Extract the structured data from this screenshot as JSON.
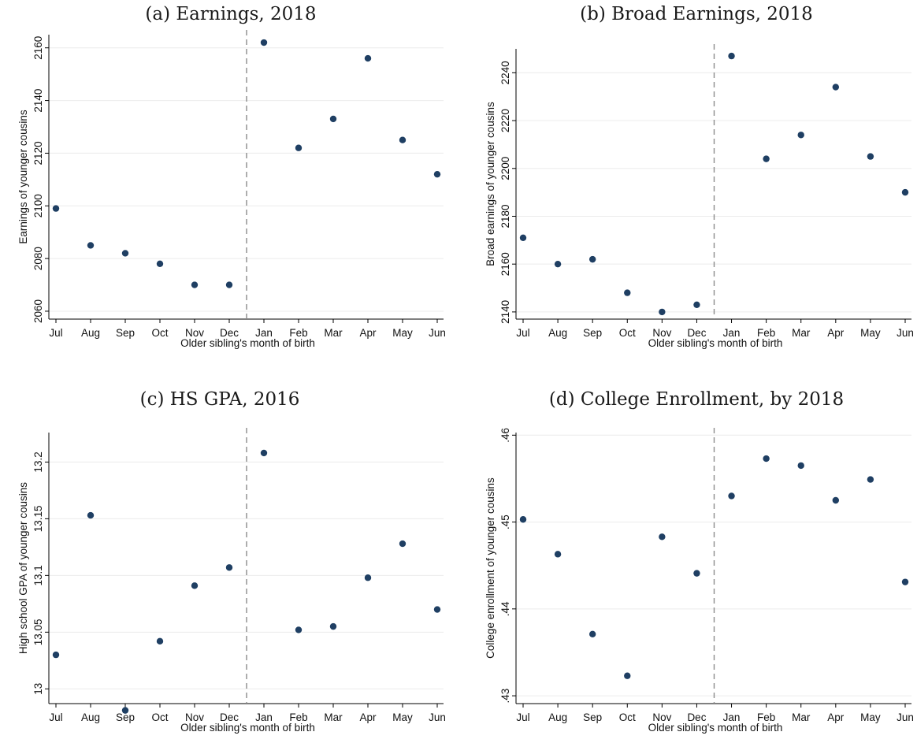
{
  "chart_data": [
    {
      "type": "scatter",
      "title": "(a) Earnings, 2018",
      "xlabel": "Older sibling's month of birth",
      "ylabel": "Earnings of younger cousins",
      "categories": [
        "Jul",
        "Aug",
        "Sep",
        "Oct",
        "Nov",
        "Dec",
        "Jan",
        "Feb",
        "Mar",
        "Apr",
        "May",
        "Jun"
      ],
      "values": [
        2099,
        2085,
        2082,
        2078,
        2070,
        2070,
        2162,
        2122,
        2133,
        2156,
        2125,
        2112
      ],
      "ylim": [
        2057,
        2165
      ],
      "yticks": [
        2060,
        2080,
        2100,
        2120,
        2140,
        2160
      ],
      "ytick_labels": [
        "2060",
        "2080",
        "2100",
        "2120",
        "2140",
        "2160"
      ],
      "cutoff": "between Dec and Jan",
      "grid": true
    },
    {
      "type": "scatter",
      "title": "(b) Broad Earnings, 2018",
      "xlabel": "Older sibling's month of birth",
      "ylabel": "Broad earnings of younger cousins",
      "categories": [
        "Jul",
        "Aug",
        "Sep",
        "Oct",
        "Nov",
        "Dec",
        "Jan",
        "Feb",
        "Mar",
        "Apr",
        "May",
        "Jun"
      ],
      "values": [
        2171,
        2160,
        2162,
        2148,
        2140,
        2143,
        2247,
        2204,
        2214,
        2234,
        2205,
        2190
      ],
      "ylim": [
        2137,
        2250
      ],
      "yticks": [
        2140,
        2160,
        2180,
        2200,
        2220,
        2240
      ],
      "ytick_labels": [
        "2140",
        "2160",
        "2180",
        "2200",
        "2220",
        "2240"
      ],
      "cutoff": "between Dec and Jan",
      "grid": true
    },
    {
      "type": "scatter",
      "title": "(c) HS GPA, 2016",
      "xlabel": "Older sibling's month of birth",
      "ylabel": "High school GPA of younger cousins",
      "categories": [
        "Jul",
        "Aug",
        "Sep",
        "Oct",
        "Nov",
        "Dec",
        "Jan",
        "Feb",
        "Mar",
        "Apr",
        "May",
        "Jun"
      ],
      "values": [
        13.03,
        13.153,
        12.981,
        13.042,
        13.091,
        13.107,
        13.208,
        13.052,
        13.055,
        13.098,
        13.128,
        13.07
      ],
      "ylim": [
        12.987,
        13.226
      ],
      "yticks": [
        13,
        13.05,
        13.1,
        13.15,
        13.2
      ],
      "ytick_labels": [
        "13",
        "13.05",
        "13.1",
        "13.15",
        "13.2"
      ],
      "cutoff": "between Dec and Jan",
      "grid": true
    },
    {
      "type": "scatter",
      "title": "(d) College Enrollment, by 2018",
      "xlabel": "Older sibling's month of birth",
      "ylabel": "College enrollment of younger cousins",
      "categories": [
        "Jul",
        "Aug",
        "Sep",
        "Oct",
        "Nov",
        "Dec",
        "Jan",
        "Feb",
        "Mar",
        "Apr",
        "May",
        "Jun"
      ],
      "values": [
        0.4503,
        0.4463,
        0.4371,
        0.4323,
        0.4483,
        0.4441,
        0.453,
        0.4573,
        0.4565,
        0.4525,
        0.4549,
        0.4431
      ],
      "ylim": [
        0.4291,
        0.4603
      ],
      "yticks": [
        0.43,
        0.44,
        0.45,
        0.46
      ],
      "ytick_labels": [
        ".43",
        ".44",
        ".45",
        ".46"
      ],
      "cutoff": "between Dec and Jan",
      "grid": true
    }
  ],
  "colors": {
    "marker": "#1f3f63",
    "cutoff_line": "#8a8a8a",
    "gridline": "#ececec",
    "axis": "#000000"
  }
}
